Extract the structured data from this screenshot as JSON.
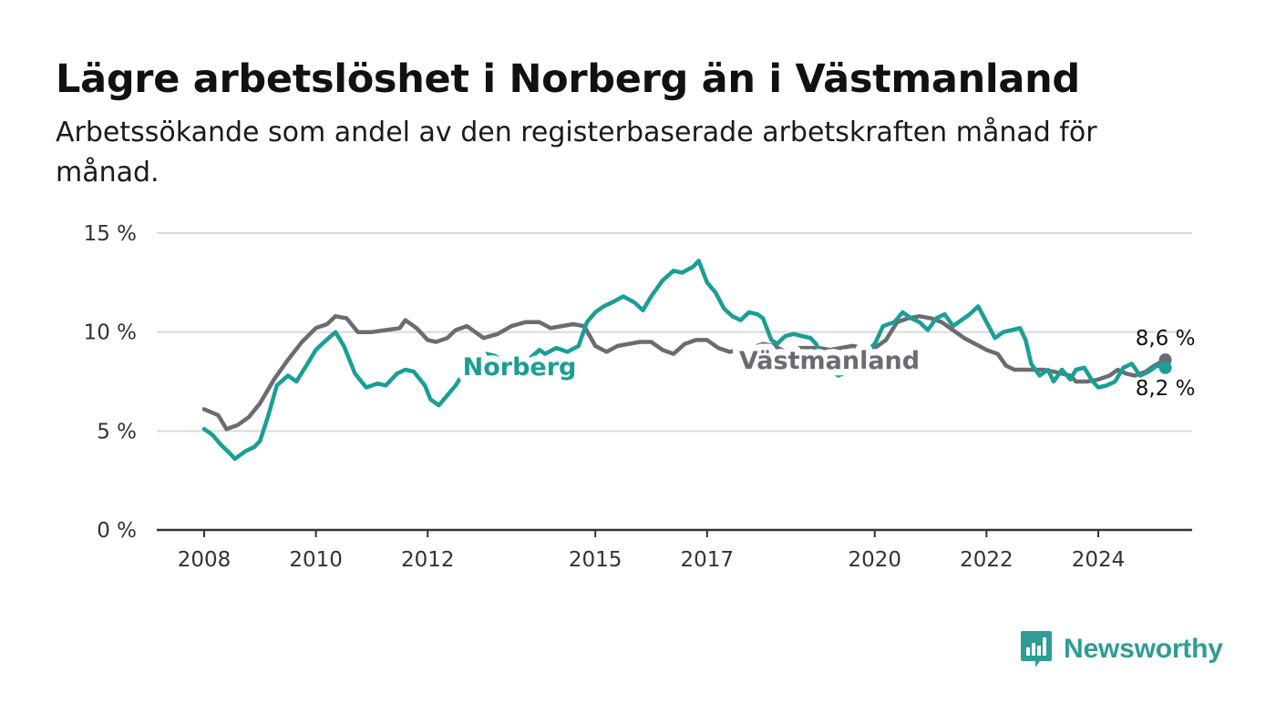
{
  "title": "Lägre arbetslöshet i Norberg än i Västmanland",
  "subtitle": "Arbetssökande som andel av den registerbaserade arbetskraften månad för månad.",
  "brand": {
    "name": "Newsworthy",
    "icon": "newsworthy-bar-chart-icon",
    "color": "#2f9c96"
  },
  "chart_data": {
    "type": "line",
    "ylim": [
      0,
      15
    ],
    "xlim": [
      2007.2,
      2026.7
    ],
    "y_ticks": [
      {
        "value": 0,
        "label": "0 %"
      },
      {
        "value": 5,
        "label": "5 %"
      },
      {
        "value": 10,
        "label": "10 %"
      },
      {
        "value": 15,
        "label": "15 %"
      }
    ],
    "x_ticks": [
      {
        "value": 2008,
        "label": "2008"
      },
      {
        "value": 2010,
        "label": "2010"
      },
      {
        "value": 2012,
        "label": "2012"
      },
      {
        "value": 2015,
        "label": "2015"
      },
      {
        "value": 2017,
        "label": "2017"
      },
      {
        "value": 2020,
        "label": "2020"
      },
      {
        "value": 2022,
        "label": "2022"
      },
      {
        "value": 2024,
        "label": "2024"
      }
    ],
    "grid": true,
    "series": [
      {
        "name": "Västmanland",
        "color": "#6b6b73",
        "end_label": "8,6 %",
        "points": [
          [
            2008.0,
            6.1
          ],
          [
            2008.25,
            5.8
          ],
          [
            2008.4,
            5.1
          ],
          [
            2008.6,
            5.3
          ],
          [
            2008.8,
            5.7
          ],
          [
            2009.0,
            6.4
          ],
          [
            2009.25,
            7.6
          ],
          [
            2009.5,
            8.6
          ],
          [
            2009.75,
            9.5
          ],
          [
            2010.0,
            10.2
          ],
          [
            2010.2,
            10.4
          ],
          [
            2010.35,
            10.8
          ],
          [
            2010.55,
            10.7
          ],
          [
            2010.75,
            10.0
          ],
          [
            2011.0,
            10.0
          ],
          [
            2011.25,
            10.1
          ],
          [
            2011.5,
            10.2
          ],
          [
            2011.6,
            10.6
          ],
          [
            2011.8,
            10.2
          ],
          [
            2012.0,
            9.6
          ],
          [
            2012.15,
            9.5
          ],
          [
            2012.35,
            9.7
          ],
          [
            2012.5,
            10.1
          ],
          [
            2012.7,
            10.3
          ],
          [
            2012.85,
            10.0
          ],
          [
            2013.0,
            9.7
          ],
          [
            2013.25,
            9.9
          ],
          [
            2013.5,
            10.3
          ],
          [
            2013.75,
            10.5
          ],
          [
            2014.0,
            10.5
          ],
          [
            2014.2,
            10.2
          ],
          [
            2014.4,
            10.3
          ],
          [
            2014.6,
            10.4
          ],
          [
            2014.8,
            10.3
          ],
          [
            2015.0,
            9.3
          ],
          [
            2015.2,
            9.0
          ],
          [
            2015.4,
            9.3
          ],
          [
            2015.6,
            9.4
          ],
          [
            2015.8,
            9.5
          ],
          [
            2016.0,
            9.5
          ],
          [
            2016.2,
            9.1
          ],
          [
            2016.4,
            8.9
          ],
          [
            2016.6,
            9.4
          ],
          [
            2016.8,
            9.6
          ],
          [
            2017.0,
            9.6
          ],
          [
            2017.2,
            9.2
          ],
          [
            2017.4,
            9.0
          ],
          [
            2017.6,
            9.1
          ],
          [
            2017.8,
            9.2
          ],
          [
            2018.0,
            9.4
          ],
          [
            2018.2,
            9.3
          ],
          [
            2018.4,
            9.0
          ],
          [
            2018.6,
            9.2
          ],
          [
            2018.8,
            9.2
          ],
          [
            2019.0,
            9.2
          ],
          [
            2019.2,
            9.1
          ],
          [
            2019.4,
            9.2
          ],
          [
            2019.6,
            9.3
          ],
          [
            2019.8,
            9.2
          ],
          [
            2020.0,
            9.2
          ],
          [
            2020.2,
            9.6
          ],
          [
            2020.4,
            10.5
          ],
          [
            2020.6,
            10.7
          ],
          [
            2020.8,
            10.8
          ],
          [
            2021.0,
            10.7
          ],
          [
            2021.2,
            10.5
          ],
          [
            2021.4,
            10.1
          ],
          [
            2021.6,
            9.7
          ],
          [
            2021.8,
            9.4
          ],
          [
            2022.0,
            9.1
          ],
          [
            2022.2,
            8.9
          ],
          [
            2022.35,
            8.3
          ],
          [
            2022.5,
            8.1
          ],
          [
            2022.75,
            8.1
          ],
          [
            2023.0,
            8.1
          ],
          [
            2023.2,
            8.0
          ],
          [
            2023.35,
            7.9
          ],
          [
            2023.5,
            7.8
          ],
          [
            2023.6,
            7.5
          ],
          [
            2023.8,
            7.5
          ],
          [
            2024.0,
            7.6
          ],
          [
            2024.2,
            7.8
          ],
          [
            2024.35,
            8.1
          ],
          [
            2024.5,
            7.9
          ],
          [
            2024.65,
            7.8
          ],
          [
            2024.85,
            8.0
          ],
          [
            2025.0,
            8.3
          ],
          [
            2025.2,
            8.6
          ]
        ]
      },
      {
        "name": "Norberg",
        "color": "#1a9e96",
        "end_label": "8,2 %",
        "points": [
          [
            2008.0,
            5.1
          ],
          [
            2008.15,
            4.8
          ],
          [
            2008.3,
            4.3
          ],
          [
            2008.45,
            3.9
          ],
          [
            2008.55,
            3.6
          ],
          [
            2008.75,
            4.0
          ],
          [
            2008.9,
            4.2
          ],
          [
            2009.0,
            4.5
          ],
          [
            2009.15,
            5.8
          ],
          [
            2009.3,
            7.3
          ],
          [
            2009.5,
            7.8
          ],
          [
            2009.65,
            7.5
          ],
          [
            2009.85,
            8.4
          ],
          [
            2010.0,
            9.1
          ],
          [
            2010.15,
            9.5
          ],
          [
            2010.35,
            10.0
          ],
          [
            2010.5,
            9.3
          ],
          [
            2010.7,
            7.9
          ],
          [
            2010.9,
            7.2
          ],
          [
            2011.1,
            7.4
          ],
          [
            2011.25,
            7.3
          ],
          [
            2011.45,
            7.9
          ],
          [
            2011.6,
            8.1
          ],
          [
            2011.75,
            8.0
          ],
          [
            2011.95,
            7.3
          ],
          [
            2012.05,
            6.6
          ],
          [
            2012.2,
            6.3
          ],
          [
            2012.35,
            6.8
          ],
          [
            2012.5,
            7.3
          ],
          [
            2012.7,
            8.2
          ],
          [
            2012.9,
            8.5
          ],
          [
            2013.05,
            8.9
          ],
          [
            2013.2,
            8.8
          ],
          [
            2013.45,
            8.3
          ],
          [
            2013.6,
            8.0
          ],
          [
            2013.8,
            8.6
          ],
          [
            2014.0,
            9.1
          ],
          [
            2014.1,
            8.9
          ],
          [
            2014.3,
            9.2
          ],
          [
            2014.5,
            9.0
          ],
          [
            2014.7,
            9.3
          ],
          [
            2014.85,
            10.5
          ],
          [
            2015.0,
            11.0
          ],
          [
            2015.15,
            11.3
          ],
          [
            2015.3,
            11.5
          ],
          [
            2015.5,
            11.8
          ],
          [
            2015.7,
            11.5
          ],
          [
            2015.85,
            11.1
          ],
          [
            2016.0,
            11.8
          ],
          [
            2016.2,
            12.6
          ],
          [
            2016.4,
            13.1
          ],
          [
            2016.55,
            13.0
          ],
          [
            2016.75,
            13.3
          ],
          [
            2016.85,
            13.6
          ],
          [
            2017.0,
            12.5
          ],
          [
            2017.15,
            12.0
          ],
          [
            2017.3,
            11.2
          ],
          [
            2017.45,
            10.8
          ],
          [
            2017.6,
            10.6
          ],
          [
            2017.75,
            11.0
          ],
          [
            2017.9,
            10.9
          ],
          [
            2018.0,
            10.7
          ],
          [
            2018.15,
            9.6
          ],
          [
            2018.25,
            9.4
          ],
          [
            2018.4,
            9.8
          ],
          [
            2018.55,
            9.9
          ],
          [
            2018.7,
            9.8
          ],
          [
            2018.85,
            9.7
          ],
          [
            2018.95,
            9.4
          ],
          [
            2019.05,
            8.7
          ],
          [
            2019.2,
            8.1
          ],
          [
            2019.35,
            7.8
          ],
          [
            2019.5,
            8.0
          ],
          [
            2019.65,
            8.3
          ],
          [
            2019.8,
            8.9
          ],
          [
            2020.0,
            9.4
          ],
          [
            2020.15,
            10.3
          ],
          [
            2020.35,
            10.5
          ],
          [
            2020.5,
            11.0
          ],
          [
            2020.65,
            10.7
          ],
          [
            2020.8,
            10.5
          ],
          [
            2020.95,
            10.1
          ],
          [
            2021.1,
            10.7
          ],
          [
            2021.25,
            10.9
          ],
          [
            2021.4,
            10.3
          ],
          [
            2021.55,
            10.6
          ],
          [
            2021.7,
            10.9
          ],
          [
            2021.85,
            11.3
          ],
          [
            2022.0,
            10.5
          ],
          [
            2022.15,
            9.7
          ],
          [
            2022.3,
            10.0
          ],
          [
            2022.45,
            10.1
          ],
          [
            2022.6,
            10.2
          ],
          [
            2022.7,
            9.6
          ],
          [
            2022.8,
            8.4
          ],
          [
            2022.95,
            7.8
          ],
          [
            2023.1,
            8.1
          ],
          [
            2023.2,
            7.5
          ],
          [
            2023.35,
            8.1
          ],
          [
            2023.5,
            7.6
          ],
          [
            2023.6,
            8.1
          ],
          [
            2023.75,
            8.2
          ],
          [
            2023.9,
            7.5
          ],
          [
            2024.0,
            7.2
          ],
          [
            2024.15,
            7.3
          ],
          [
            2024.3,
            7.5
          ],
          [
            2024.45,
            8.2
          ],
          [
            2024.6,
            8.4
          ],
          [
            2024.75,
            7.8
          ],
          [
            2024.9,
            8.0
          ],
          [
            2025.05,
            8.3
          ],
          [
            2025.2,
            8.2
          ]
        ]
      }
    ]
  }
}
